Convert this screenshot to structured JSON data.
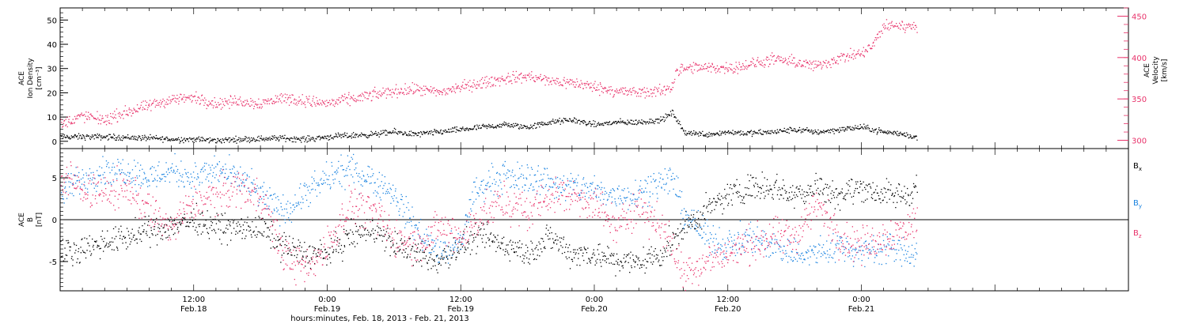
{
  "xaxis": {
    "title": "hours:minutes, Feb. 18, 2013 - Feb. 21, 2013",
    "range_hours": [
      0,
      96
    ],
    "ticks": [
      {
        "hour": 12,
        "time": "12:00",
        "date": "Feb.18"
      },
      {
        "hour": 24,
        "time": "0:00",
        "date": "Feb.19"
      },
      {
        "hour": 36,
        "time": "12:00",
        "date": "Feb.19"
      },
      {
        "hour": 48,
        "time": "0:00",
        "date": "Feb.20"
      },
      {
        "hour": 60,
        "time": "12:00",
        "date": "Feb.20"
      },
      {
        "hour": 72,
        "time": "0:00",
        "date": "Feb.21"
      }
    ],
    "data_end_hour": 77
  },
  "colors": {
    "black": "#000000",
    "pink": "#e8336b",
    "blue": "#1a83e0"
  },
  "chart_data": [
    {
      "type": "scatter",
      "panel": "top",
      "left_axis": {
        "label_lines": [
          "ACE",
          "Ion Density",
          "[cm⁻³]"
        ],
        "ylim": [
          -3,
          55
        ],
        "ticks": [
          0,
          10,
          20,
          30,
          40,
          50
        ]
      },
      "right_axis": {
        "label_lines": [
          "ACE",
          "Velocity",
          "[km/s]"
        ],
        "ylim": [
          290,
          460
        ],
        "ticks": [
          300,
          350,
          400,
          450
        ],
        "color": "#e8336b"
      },
      "series": [
        {
          "name": "Ion Density",
          "axis": "left",
          "color": "#000000",
          "points": [
            [
              0,
              2
            ],
            [
              4,
              2
            ],
            [
              8,
              1.5
            ],
            [
              10,
              1
            ],
            [
              12,
              1
            ],
            [
              14,
              0.5
            ],
            [
              16,
              1
            ],
            [
              20,
              1.5
            ],
            [
              22,
              1
            ],
            [
              24,
              2
            ],
            [
              26,
              2.5
            ],
            [
              28,
              3
            ],
            [
              30,
              4
            ],
            [
              32,
              3
            ],
            [
              34,
              4
            ],
            [
              36,
              5
            ],
            [
              38,
              6
            ],
            [
              40,
              7
            ],
            [
              42,
              6
            ],
            [
              44,
              8
            ],
            [
              46,
              9
            ],
            [
              48,
              7
            ],
            [
              50,
              8
            ],
            [
              52,
              8
            ],
            [
              54,
              9
            ],
            [
              55,
              12
            ],
            [
              56,
              4
            ],
            [
              58,
              3
            ],
            [
              60,
              4
            ],
            [
              62,
              3.5
            ],
            [
              64,
              4
            ],
            [
              66,
              5
            ],
            [
              68,
              4
            ],
            [
              70,
              5
            ],
            [
              72,
              6
            ],
            [
              74,
              4
            ],
            [
              76,
              3
            ],
            [
              77,
              1.5
            ]
          ],
          "noise": 1.2
        },
        {
          "name": "Velocity",
          "axis": "right",
          "color": "#e8336b",
          "points": [
            [
              0,
              320
            ],
            [
              2,
              330
            ],
            [
              4,
              325
            ],
            [
              6,
              335
            ],
            [
              8,
              342
            ],
            [
              10,
              350
            ],
            [
              12,
              352
            ],
            [
              14,
              345
            ],
            [
              16,
              348
            ],
            [
              18,
              345
            ],
            [
              20,
              352
            ],
            [
              22,
              348
            ],
            [
              24,
              345
            ],
            [
              26,
              350
            ],
            [
              28,
              355
            ],
            [
              30,
              360
            ],
            [
              32,
              362
            ],
            [
              34,
              358
            ],
            [
              36,
              365
            ],
            [
              38,
              370
            ],
            [
              40,
              375
            ],
            [
              42,
              378
            ],
            [
              44,
              372
            ],
            [
              46,
              370
            ],
            [
              48,
              365
            ],
            [
              50,
              360
            ],
            [
              52,
              358
            ],
            [
              54,
              360
            ],
            [
              55,
              366
            ],
            [
              55.3,
              385
            ],
            [
              57,
              388
            ],
            [
              60,
              388
            ],
            [
              62,
              392
            ],
            [
              64,
              398
            ],
            [
              66,
              395
            ],
            [
              68,
              390
            ],
            [
              70,
              400
            ],
            [
              72,
              405
            ],
            [
              73,
              415
            ],
            [
              74,
              438
            ],
            [
              75,
              440
            ],
            [
              76,
              438
            ],
            [
              77,
              440
            ]
          ],
          "noise": 7
        }
      ]
    },
    {
      "type": "scatter",
      "panel": "bottom",
      "left_axis": {
        "label_lines": [
          "ACE",
          "B",
          "[nT]"
        ],
        "ylim": [
          -8.5,
          8.5
        ],
        "ticks": [
          -5,
          0,
          5
        ]
      },
      "series": [
        {
          "name": "Bx",
          "label_sub": "x",
          "color": "#000000",
          "points": [
            [
              0,
              -4
            ],
            [
              3,
              -3
            ],
            [
              6,
              -2
            ],
            [
              9,
              -1
            ],
            [
              12,
              0
            ],
            [
              15,
              -1
            ],
            [
              18,
              -1
            ],
            [
              20,
              -3
            ],
            [
              22,
              -4
            ],
            [
              24,
              -4
            ],
            [
              26,
              -2
            ],
            [
              28,
              -1
            ],
            [
              30,
              -3
            ],
            [
              32,
              -4
            ],
            [
              34,
              -5
            ],
            [
              36,
              -3
            ],
            [
              38,
              -2
            ],
            [
              40,
              -3
            ],
            [
              42,
              -4
            ],
            [
              44,
              -2
            ],
            [
              46,
              -4
            ],
            [
              48,
              -4
            ],
            [
              50,
              -5
            ],
            [
              52,
              -5
            ],
            [
              54,
              -4
            ],
            [
              56,
              -1
            ],
            [
              58,
              1
            ],
            [
              60,
              3
            ],
            [
              62,
              4
            ],
            [
              64,
              4
            ],
            [
              66,
              3
            ],
            [
              68,
              4
            ],
            [
              70,
              3
            ],
            [
              72,
              4
            ],
            [
              74,
              3
            ],
            [
              76,
              3
            ],
            [
              77,
              4
            ]
          ],
          "noise": 1.6
        },
        {
          "name": "By",
          "label_sub": "y",
          "color": "#1a83e0",
          "points": [
            [
              0,
              3
            ],
            [
              2,
              5
            ],
            [
              4,
              6
            ],
            [
              6,
              6
            ],
            [
              8,
              5
            ],
            [
              10,
              6
            ],
            [
              12,
              5
            ],
            [
              14,
              6
            ],
            [
              16,
              5
            ],
            [
              18,
              3
            ],
            [
              20,
              1
            ],
            [
              22,
              3
            ],
            [
              24,
              5
            ],
            [
              26,
              6
            ],
            [
              28,
              5
            ],
            [
              30,
              3
            ],
            [
              32,
              -1
            ],
            [
              34,
              -4
            ],
            [
              36,
              -3
            ],
            [
              37,
              3
            ],
            [
              39,
              5
            ],
            [
              41,
              5
            ],
            [
              43,
              5
            ],
            [
              45,
              4
            ],
            [
              47,
              4
            ],
            [
              49,
              3
            ],
            [
              51,
              3
            ],
            [
              53,
              4
            ],
            [
              55,
              5
            ],
            [
              56,
              1
            ],
            [
              58,
              -2
            ],
            [
              60,
              -3
            ],
            [
              62,
              -2
            ],
            [
              64,
              -3
            ],
            [
              66,
              -4
            ],
            [
              68,
              -4
            ],
            [
              70,
              -3
            ],
            [
              72,
              -4
            ],
            [
              74,
              -3
            ],
            [
              76,
              -4
            ],
            [
              77,
              -4
            ]
          ],
          "noise": 1.8
        },
        {
          "name": "Bz",
          "label_sub": "z",
          "color": "#e8336b",
          "points": [
            [
              0,
              5
            ],
            [
              2,
              4
            ],
            [
              4,
              3
            ],
            [
              6,
              4
            ],
            [
              8,
              1
            ],
            [
              10,
              -1
            ],
            [
              12,
              2
            ],
            [
              14,
              3
            ],
            [
              16,
              4
            ],
            [
              18,
              3
            ],
            [
              20,
              -4
            ],
            [
              22,
              -6
            ],
            [
              24,
              -3
            ],
            [
              26,
              2
            ],
            [
              28,
              1
            ],
            [
              30,
              -2
            ],
            [
              32,
              -3
            ],
            [
              34,
              -1
            ],
            [
              36,
              -2
            ],
            [
              38,
              1
            ],
            [
              40,
              2
            ],
            [
              42,
              1
            ],
            [
              44,
              3
            ],
            [
              46,
              3
            ],
            [
              48,
              2
            ],
            [
              50,
              -1
            ],
            [
              52,
              2
            ],
            [
              54,
              -1
            ],
            [
              56,
              -6
            ],
            [
              58,
              -5
            ],
            [
              60,
              -4
            ],
            [
              62,
              -3
            ],
            [
              64,
              -2
            ],
            [
              66,
              -2
            ],
            [
              68,
              2
            ],
            [
              70,
              -2
            ],
            [
              72,
              -3
            ],
            [
              74,
              -2
            ],
            [
              76,
              -1
            ],
            [
              77,
              0
            ]
          ],
          "noise": 2.2
        }
      ]
    }
  ]
}
